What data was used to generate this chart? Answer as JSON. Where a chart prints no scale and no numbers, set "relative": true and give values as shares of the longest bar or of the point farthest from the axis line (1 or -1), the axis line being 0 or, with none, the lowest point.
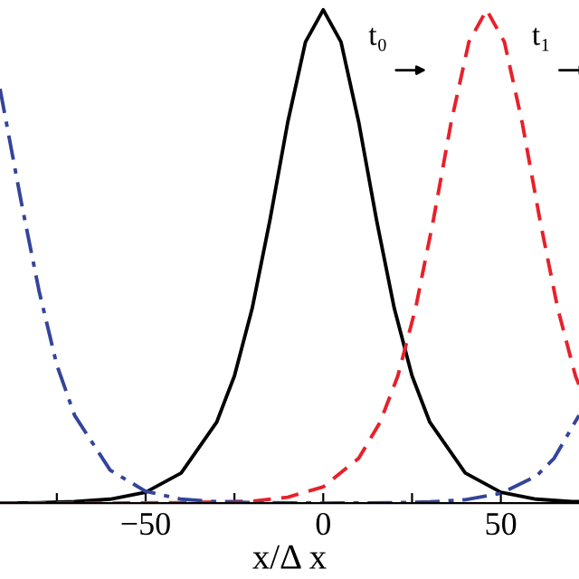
{
  "chart_data": {
    "type": "line",
    "relative": true,
    "xlabel": "x/Δ x",
    "xlim": [
      -91,
      72
    ],
    "xticks": [
      {
        "value": -75,
        "label": null
      },
      -50,
      {
        "value": -25,
        "label": null
      },
      0,
      {
        "value": 25,
        "label": null
      },
      50
    ],
    "tick_labels": "x",
    "grid": false,
    "legend": false,
    "marker": "none",
    "annotations": [
      "t₀",
      "t₁"
    ],
    "series": [
      {
        "color": "#000000",
        "line_style": "solid",
        "x": [
          -91,
          -80,
          -70,
          -60,
          -50,
          -40,
          -30,
          -25,
          -20,
          -15,
          -10,
          -5,
          0,
          5,
          10,
          15,
          20,
          25,
          30,
          40,
          50,
          60,
          70,
          72
        ],
        "values": [
          0,
          0.001,
          0.003,
          0.008,
          0.022,
          0.061,
          0.164,
          0.258,
          0.395,
          0.574,
          0.772,
          0.935,
          1,
          0.935,
          0.772,
          0.574,
          0.395,
          0.258,
          0.164,
          0.061,
          0.022,
          0.008,
          0.003,
          0.003
        ]
      },
      {
        "color": "#e8202a",
        "line_style": "dashed",
        "x": [
          -91,
          -60,
          -40,
          -20,
          -10,
          0,
          10,
          16,
          21,
          26,
          31,
          36,
          41,
          46,
          51,
          56,
          61,
          66,
          71,
          72
        ],
        "values": [
          0,
          0,
          0.001,
          0.004,
          0.012,
          0.033,
          0.091,
          0.164,
          0.258,
          0.395,
          0.574,
          0.772,
          0.935,
          1,
          0.935,
          0.772,
          0.574,
          0.395,
          0.258,
          0.24
        ]
      },
      {
        "color": "#34449a",
        "line_style": "dashdot",
        "x": [
          -91,
          -85,
          -80,
          -75,
          -70,
          -60,
          -50,
          -40,
          -30,
          -20,
          0,
          20,
          30,
          40,
          50,
          60,
          65,
          72
        ],
        "values": [
          0.84,
          0.61,
          0.43,
          0.28,
          0.178,
          0.067,
          0.024,
          0.008,
          0.003,
          0.001,
          0,
          0.001,
          0.0025,
          0.007,
          0.02,
          0.055,
          0.091,
          0.178
        ]
      }
    ]
  }
}
